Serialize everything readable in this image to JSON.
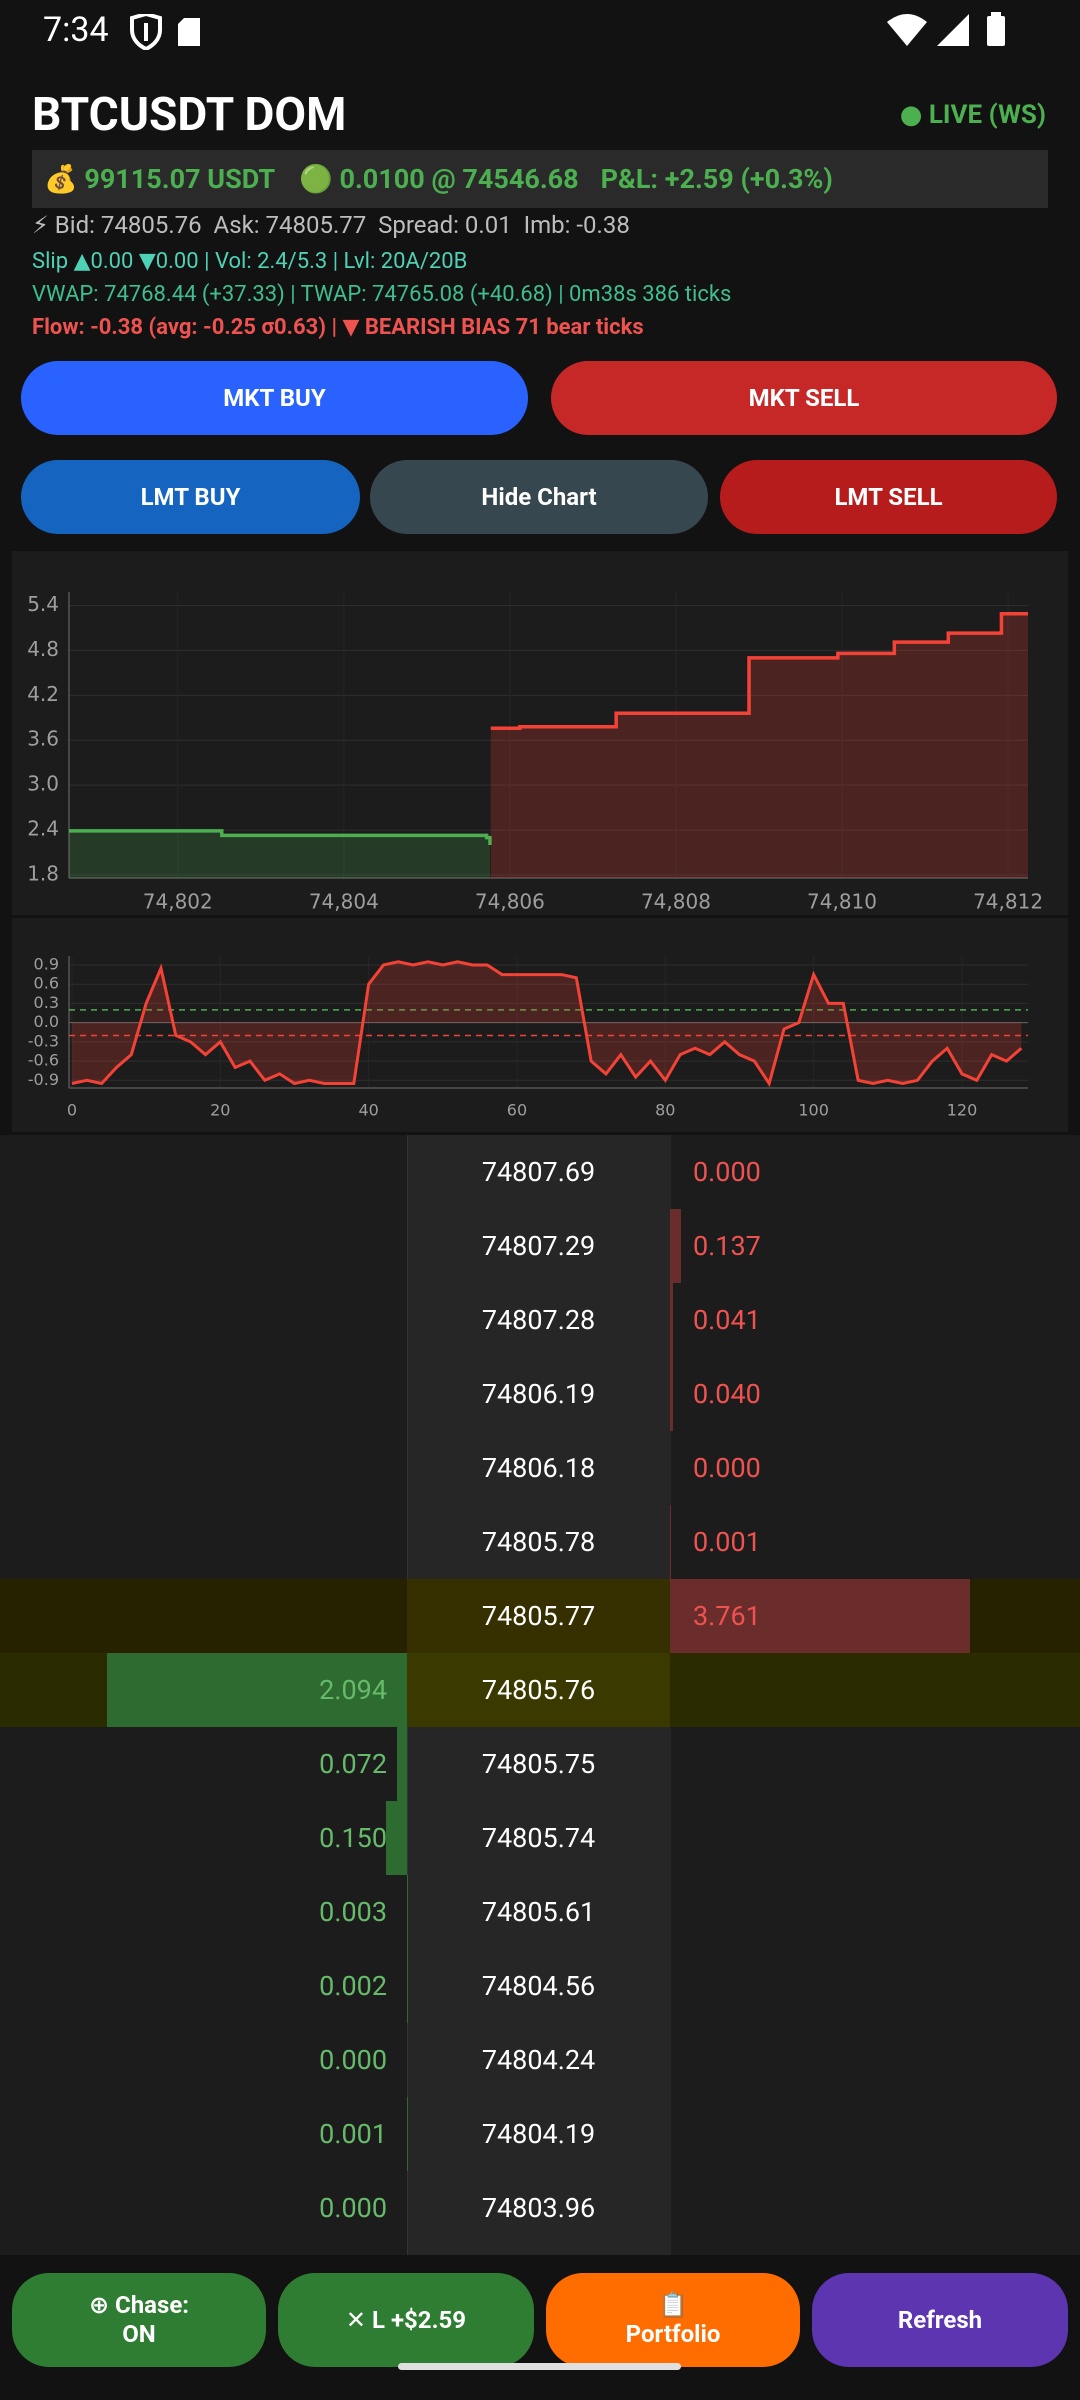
{
  "status": {
    "time": "7:34"
  },
  "header": {
    "title": "BTCUSDT DOM",
    "status": "● LIVE (WS)"
  },
  "summary": {
    "balance": "💰 99115.07 USDT",
    "position": "🟢 0.0100 @ 74546.68",
    "pnl": "P&L: +2.59 (+0.3%)"
  },
  "stats": {
    "quote": "⚡ Bid: 74805.76  Ask: 74805.77  Spread: 0.01  Imb: -0.38",
    "slip": "Slip ▲0.00 ▼0.00 | Vol: 2.4/5.3 | Lvl: 20A/20B",
    "vwap": "VWAP: 74768.44 (+37.33) | TWAP: 74765.08 (+40.68) | 0m38s 386 ticks",
    "flow": "Flow: -0.38 (avg: -0.25 σ0.63) | ▼ BEARISH BIAS 71 bear ticks"
  },
  "buttons": {
    "mkt_buy": "MKT BUY",
    "mkt_sell": "MKT SELL",
    "lmt_buy": "LMT BUY",
    "hide_chart": "Hide Chart",
    "lmt_sell": "LMT SELL"
  },
  "chart_data": [
    {
      "type": "step",
      "xlim": [
        74800.69,
        74812.24
      ],
      "xticks": [
        {
          "value": 74802,
          "label": "74,802"
        },
        {
          "value": 74804,
          "label": "74,804"
        },
        {
          "value": 74806,
          "label": "74,806"
        },
        {
          "value": 74808,
          "label": "74,808"
        },
        {
          "value": 74810,
          "label": "74,810"
        },
        {
          "value": 74812,
          "label": "74,812"
        }
      ],
      "ylim": [
        1.76,
        5.58
      ],
      "yticks": [
        1.8,
        2.4,
        {
          "value": 3,
          "label": "3.0"
        },
        3.6,
        4.2,
        4.8,
        5.4
      ],
      "grid": true,
      "series": [
        {
          "color": "#4caf50",
          "x": [
            74800.69,
            74802.53,
            74805.72,
            74805.76
          ],
          "values": [
            2.39,
            2.33,
            2.3,
            2.2
          ]
        },
        {
          "color": "#f44336",
          "x": [
            74805.77,
            74806.12,
            74807.28,
            74808.88,
            74809.95,
            74810.63,
            74811.28,
            74811.92,
            74812.24
          ],
          "values": [
            3.76,
            3.78,
            3.96,
            4.7,
            4.76,
            4.91,
            5.03,
            5.29,
            5.29
          ]
        }
      ]
    },
    {
      "type": "line",
      "xlim": [
        -0.4,
        128.9
      ],
      "xticks": [
        0,
        20,
        40,
        60,
        80,
        100,
        120
      ],
      "ylim": [
        -1.02,
        1.04
      ],
      "yticks": [
        0.9,
        0.6,
        0.3,
        {
          "value": 0,
          "label": "0.0"
        },
        -0.3,
        -0.6,
        -0.9
      ],
      "grid": true,
      "thresholds": [
        {
          "value": 0.2,
          "color": "#4caf50"
        },
        {
          "value": -0.2,
          "color": "#f44336"
        }
      ],
      "color": "#f44336",
      "x": [
        0,
        2,
        4,
        6,
        8,
        10,
        12,
        14,
        16,
        18,
        20,
        22,
        24,
        26,
        28,
        30,
        32,
        34,
        36,
        38,
        40,
        42,
        44,
        46,
        48,
        50,
        52,
        54,
        56,
        58,
        60,
        62,
        64,
        66,
        68,
        70,
        72,
        74,
        76,
        78,
        80,
        82,
        84,
        86,
        88,
        90,
        92,
        94,
        96,
        98,
        100,
        102,
        104,
        106,
        108,
        110,
        112,
        114,
        116,
        118,
        120,
        122,
        124,
        126,
        128
      ],
      "values": [
        -0.95,
        -0.9,
        -0.95,
        -0.7,
        -0.5,
        0.3,
        0.85,
        -0.2,
        -0.3,
        -0.5,
        -0.3,
        -0.7,
        -0.6,
        -0.9,
        -0.8,
        -0.95,
        -0.9,
        -0.95,
        -0.95,
        -0.95,
        0.6,
        0.9,
        0.95,
        0.9,
        0.95,
        0.9,
        0.95,
        0.9,
        0.9,
        0.75,
        0.75,
        0.75,
        0.75,
        0.75,
        0.7,
        -0.6,
        -0.8,
        -0.5,
        -0.85,
        -0.6,
        -0.9,
        -0.5,
        -0.4,
        -0.5,
        -0.3,
        -0.5,
        -0.6,
        -0.95,
        -0.1,
        0.0,
        0.75,
        0.3,
        0.3,
        -0.9,
        -0.95,
        -0.9,
        -0.95,
        -0.9,
        -0.6,
        -0.4,
        -0.8,
        -0.9,
        -0.5,
        -0.6,
        -0.4
      ]
    }
  ],
  "orderbook": {
    "rows": [
      {
        "price": "74807.69",
        "bid": null,
        "ask": "0.000"
      },
      {
        "price": "74807.29",
        "bid": null,
        "ask": "0.137"
      },
      {
        "price": "74807.28",
        "bid": null,
        "ask": "0.041"
      },
      {
        "price": "74806.19",
        "bid": null,
        "ask": "0.040"
      },
      {
        "price": "74806.18",
        "bid": null,
        "ask": "0.000"
      },
      {
        "price": "74805.78",
        "bid": null,
        "ask": "0.001"
      },
      {
        "price": "74805.77",
        "bid": null,
        "ask": "3.761",
        "highlight": true
      },
      {
        "price": "74805.76",
        "bid": "2.094",
        "ask": null,
        "highlight": true
      },
      {
        "price": "74805.75",
        "bid": "0.072",
        "ask": null
      },
      {
        "price": "74805.74",
        "bid": "0.150",
        "ask": null
      },
      {
        "price": "74805.61",
        "bid": "0.003",
        "ask": null
      },
      {
        "price": "74804.56",
        "bid": "0.002",
        "ask": null
      },
      {
        "price": "74804.24",
        "bid": "0.000",
        "ask": null
      },
      {
        "price": "74804.19",
        "bid": "0.001",
        "ask": null
      },
      {
        "price": "74803.96",
        "bid": "0.000",
        "ask": null
      }
    ]
  },
  "footer": {
    "chase": "⊕ Chase:\nON",
    "close": "✕ L +$2.59",
    "portfolio": "📋\nPortfolio",
    "refresh": "Refresh"
  }
}
